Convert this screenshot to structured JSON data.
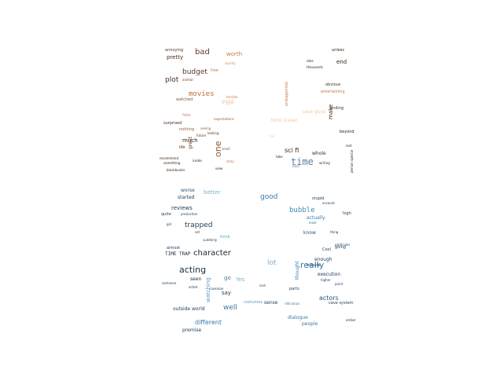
{
  "word_cloud": {
    "upper": [
      {
        "text": "bad",
        "color": "#6b3a1f"
      },
      {
        "text": "worth",
        "color": "#c8784a"
      },
      {
        "text": "annoying",
        "color": "#5a3522"
      },
      {
        "text": "pretty",
        "color": "#4a2a18"
      },
      {
        "text": "quality",
        "color": "#d89060"
      },
      {
        "text": "free",
        "color": "#c8784a"
      },
      {
        "text": "budget",
        "color": "#5a3522"
      },
      {
        "text": "plot",
        "color": "#4a2a18"
      },
      {
        "text": "animal",
        "color": "#6b3a1f"
      },
      {
        "text": "movies",
        "color": "#b8703a"
      },
      {
        "text": "watched",
        "color": "#8a5530"
      },
      {
        "text": "good",
        "color": "#f0c8a0"
      },
      {
        "text": "fake",
        "color": "#d09070"
      },
      {
        "text": "nothing",
        "color": "#9a6038"
      },
      {
        "text": "surprised",
        "color": "#4a2a18"
      },
      {
        "text": "much",
        "color": "#3a2010"
      },
      {
        "text": "great",
        "color": "#6b3a1f"
      },
      {
        "text": "life",
        "color": "#4a2a18"
      },
      {
        "text": "recommend",
        "color": "#3a2010"
      },
      {
        "text": "something",
        "color": "#3a2010"
      },
      {
        "text": "one",
        "color": "#8a5530"
      },
      {
        "text": "blockbuster",
        "color": "#3a2010"
      },
      {
        "text": "time",
        "color": "#5a7fa0"
      },
      {
        "text": "sci fi",
        "color": "#3a2010"
      },
      {
        "text": "whole",
        "color": "#4a2a18"
      },
      {
        "text": "writing",
        "color": "#4a2a18"
      },
      {
        "text": "time travel",
        "color": "#f0c8a0"
      },
      {
        "text": "make",
        "color": "#3a2010"
      },
      {
        "text": "cave guys",
        "color": "#f0c8a0"
      },
      {
        "text": "protagonists",
        "color": "#c8784a"
      },
      {
        "text": "end",
        "color": "#3a2010"
      },
      {
        "text": "unless",
        "color": "#3a2010"
      },
      {
        "text": "idea",
        "color": "#3a2010"
      },
      {
        "text": "thousands",
        "color": "#3a2010"
      },
      {
        "text": "obvious",
        "color": "#4a2a18"
      },
      {
        "text": "entertaining",
        "color": "#c8784a"
      },
      {
        "text": "ending",
        "color": "#4a2a18"
      },
      {
        "text": "beyond",
        "color": "#3a2010"
      },
      {
        "text": "expectations",
        "color": "#9a6038"
      },
      {
        "text": "terrible",
        "color": "#c8784a"
      },
      {
        "text": "way",
        "color": "#d09070"
      },
      {
        "text": "small",
        "color": "#8a5530"
      },
      {
        "text": "take",
        "color": "#3a2010"
      },
      {
        "text": "back",
        "color": "#5a7fa0"
      },
      {
        "text": "person",
        "color": "#3a2010"
      },
      {
        "text": "special",
        "color": "#3a2010"
      },
      {
        "text": "rest",
        "color": "#3a2010"
      },
      {
        "text": "good",
        "color": "#f0c8a0"
      },
      {
        "text": "fun",
        "color": "#f0c8a0"
      },
      {
        "text": "seeing",
        "color": "#9a6038"
      },
      {
        "text": "looking",
        "color": "#5a3522"
      },
      {
        "text": "future",
        "color": "#5a3522"
      },
      {
        "text": "inside",
        "color": "#3a2010"
      },
      {
        "text": "view",
        "color": "#3a2010"
      }
    ],
    "lower": [
      {
        "text": "good",
        "color": "#3a7aa8"
      },
      {
        "text": "better",
        "color": "#7ab0d0"
      },
      {
        "text": "worse",
        "color": "#2a5578"
      },
      {
        "text": "started",
        "color": "#1a3a58"
      },
      {
        "text": "reviews",
        "color": "#1a3a58"
      },
      {
        "text": "quite",
        "color": "#1a3a58"
      },
      {
        "text": "trapped",
        "color": "#1a3a58"
      },
      {
        "text": "bubble",
        "color": "#3a8ab8"
      },
      {
        "text": "actually",
        "color": "#3a7aa8"
      },
      {
        "text": "stupid",
        "color": "#1a3a58"
      },
      {
        "text": "account",
        "color": "#1a3a58"
      },
      {
        "text": "least",
        "color": "#3a7aa8"
      },
      {
        "text": "high",
        "color": "#1a3a58"
      },
      {
        "text": "know",
        "color": "#2a5578"
      },
      {
        "text": "thing",
        "color": "#1a3a58"
      },
      {
        "text": "think",
        "color": "#5aa0c8"
      },
      {
        "text": "TIME TRAP",
        "color": "#1a2a38"
      },
      {
        "text": "almost",
        "color": "#1a3a58"
      },
      {
        "text": "character",
        "color": "#1a2a38"
      },
      {
        "text": "really",
        "color": "#3a7aa8"
      },
      {
        "text": "lot",
        "color": "#7ab0d0"
      },
      {
        "text": "enough",
        "color": "#1a3a58"
      },
      {
        "text": "Cool",
        "color": "#1a3a58"
      },
      {
        "text": "going",
        "color": "#1a3a58"
      },
      {
        "text": "acting",
        "color": "#1a2a38"
      },
      {
        "text": "thought",
        "color": "#3a7aa8"
      },
      {
        "text": "minute",
        "color": "#1a3a58"
      },
      {
        "text": "execution",
        "color": "#1a3a58"
      },
      {
        "text": "seen",
        "color": "#1a2a38"
      },
      {
        "text": "go",
        "color": "#3a7aa8"
      },
      {
        "text": "Yes",
        "color": "#7ab0d0"
      },
      {
        "text": "watching",
        "color": "#5aa0c8"
      },
      {
        "text": "say",
        "color": "#1a3a58"
      },
      {
        "text": "parts",
        "color": "#1a3a58"
      },
      {
        "text": "actors",
        "color": "#2a5578"
      },
      {
        "text": "cave system",
        "color": "#1a3a58"
      },
      {
        "text": "point",
        "color": "#1a3a58"
      },
      {
        "text": "well",
        "color": "#3a7aa8"
      },
      {
        "text": "outside world",
        "color": "#1a3a58"
      },
      {
        "text": "sense",
        "color": "#1a3a58"
      },
      {
        "text": "dialogue",
        "color": "#3a7aa8"
      },
      {
        "text": "costumes",
        "color": "#5aa0c8"
      },
      {
        "text": "different",
        "color": "#3a7aa8"
      },
      {
        "text": "people",
        "color": "#3a7aa8"
      },
      {
        "text": "premise",
        "color": "#1a3a58"
      },
      {
        "text": "amber",
        "color": "#1a3a58"
      },
      {
        "text": "production",
        "color": "#1a3a58"
      },
      {
        "text": "girl",
        "color": "#1a3a58"
      },
      {
        "text": "suddenly",
        "color": "#1a3a58"
      },
      {
        "text": "set",
        "color": "#1a3a58"
      },
      {
        "text": "someone",
        "color": "#1a3a58"
      },
      {
        "text": "acted",
        "color": "#1a3a58"
      },
      {
        "text": "caveman",
        "color": "#1a3a58"
      },
      {
        "text": "look",
        "color": "#2a5578"
      },
      {
        "text": "ridiculous",
        "color": "#3a7aa8"
      },
      {
        "text": "particular",
        "color": "#1a3a58"
      },
      {
        "text": "higher",
        "color": "#1a3a58"
      }
    ]
  }
}
